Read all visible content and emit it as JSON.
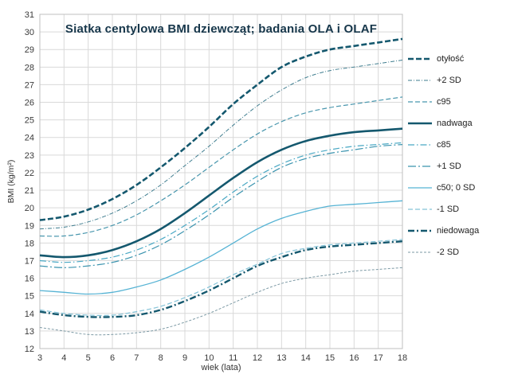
{
  "title": "Siatka centylowa BMI dziewcząt; badania OLA i OLAF",
  "chart_data": {
    "type": "line",
    "xlabel": "wiek (lata)",
    "ylabel": "BMI (kg/m²)",
    "xlim": [
      3,
      18
    ],
    "ylim": [
      12,
      31
    ],
    "x_ticks_step": 1,
    "y_ticks_step": 1,
    "grid": true,
    "legend_position": "right",
    "x": [
      3,
      4,
      5,
      6,
      7,
      8,
      9,
      10,
      11,
      12,
      13,
      14,
      15,
      16,
      17,
      18
    ],
    "series": [
      {
        "name": "otyłość",
        "color": "#14586e",
        "width": 2.6,
        "dash": "7,3",
        "values": [
          19.3,
          19.5,
          19.9,
          20.5,
          21.3,
          22.3,
          23.4,
          24.6,
          25.9,
          27.0,
          28.0,
          28.6,
          29.0,
          29.2,
          29.4,
          29.6
        ]
      },
      {
        "name": "+2 SD",
        "color": "#3f7d8f",
        "width": 1.0,
        "dash": "5,2,1,2",
        "values": [
          18.8,
          18.9,
          19.2,
          19.7,
          20.4,
          21.3,
          22.4,
          23.5,
          24.7,
          25.8,
          26.7,
          27.4,
          27.8,
          28.0,
          28.2,
          28.4
        ]
      },
      {
        "name": "c95",
        "color": "#4896ad",
        "width": 1.2,
        "dash": "6,3",
        "values": [
          18.4,
          18.4,
          18.6,
          19.0,
          19.6,
          20.4,
          21.3,
          22.3,
          23.3,
          24.2,
          24.9,
          25.4,
          25.7,
          25.9,
          26.1,
          26.3
        ]
      },
      {
        "name": "nadwaga",
        "color": "#14586e",
        "width": 2.6,
        "dash": "",
        "values": [
          17.3,
          17.2,
          17.3,
          17.6,
          18.1,
          18.8,
          19.7,
          20.7,
          21.7,
          22.6,
          23.3,
          23.8,
          24.1,
          24.3,
          24.4,
          24.5
        ]
      },
      {
        "name": "c85",
        "color": "#49a8c4",
        "width": 1.2,
        "dash": "8,3,1.5,3",
        "values": [
          17.0,
          16.9,
          17.0,
          17.2,
          17.6,
          18.2,
          19.0,
          19.9,
          20.9,
          21.8,
          22.5,
          23.0,
          23.3,
          23.5,
          23.6,
          23.7
        ]
      },
      {
        "name": "+1 SD",
        "color": "#3a93ae",
        "width": 1.2,
        "dash": "10,3,2,3",
        "values": [
          16.7,
          16.6,
          16.7,
          16.9,
          17.3,
          17.9,
          18.7,
          19.6,
          20.6,
          21.5,
          22.3,
          22.8,
          23.1,
          23.3,
          23.5,
          23.6
        ]
      },
      {
        "name": "c50; 0 SD",
        "color": "#56b3d4",
        "width": 1.3,
        "dash": "",
        "values": [
          15.3,
          15.2,
          15.1,
          15.2,
          15.5,
          15.9,
          16.5,
          17.2,
          18.0,
          18.8,
          19.4,
          19.8,
          20.1,
          20.2,
          20.3,
          20.4
        ]
      },
      {
        "name": "-1 SD",
        "color": "#85c3d8",
        "width": 1.2,
        "dash": "6,3",
        "values": [
          14.2,
          14.0,
          13.9,
          13.9,
          14.1,
          14.4,
          14.9,
          15.5,
          16.2,
          16.8,
          17.4,
          17.7,
          17.9,
          18.0,
          18.1,
          18.2
        ]
      },
      {
        "name": "niedowaga",
        "color": "#14586e",
        "width": 2.4,
        "dash": "8,3,2,3",
        "values": [
          14.1,
          13.9,
          13.8,
          13.8,
          13.9,
          14.2,
          14.7,
          15.3,
          16.0,
          16.7,
          17.2,
          17.6,
          17.8,
          17.9,
          18.0,
          18.1
        ]
      },
      {
        "name": "-2 SD",
        "color": "#7d9aa5",
        "width": 1.0,
        "dash": "3,2",
        "values": [
          13.2,
          13.0,
          12.8,
          12.8,
          12.9,
          13.1,
          13.5,
          14.0,
          14.6,
          15.2,
          15.7,
          16.0,
          16.2,
          16.4,
          16.5,
          16.6
        ]
      }
    ]
  }
}
